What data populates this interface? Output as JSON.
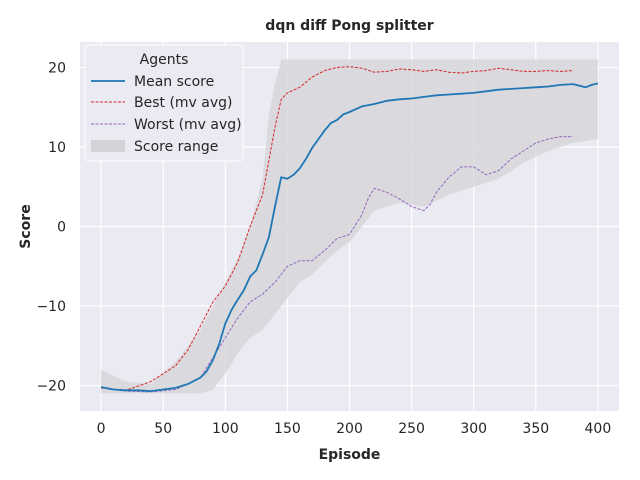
{
  "chart_data": {
    "type": "line",
    "title": "dqn diff Pong splitter",
    "xlabel": "Episode",
    "ylabel": "Score",
    "xlim": [
      -17,
      417
    ],
    "ylim": [
      -23.2,
      23.2
    ],
    "xticks": [
      0,
      50,
      100,
      150,
      200,
      250,
      300,
      350,
      400
    ],
    "yticks": [
      -20,
      -10,
      0,
      10,
      20
    ],
    "grid": true,
    "legend": {
      "title": "Agents",
      "placement": "top-left",
      "entries": [
        "Mean score",
        "Best (mv avg)",
        "Worst (mv avg)",
        "Score range"
      ]
    },
    "colors": {
      "background": "#EAEAF2",
      "grid": "#FFFFFF",
      "mean": "#1F77B4",
      "best": "#D62728",
      "worst": "#9467BD",
      "range": "#D3D3D7"
    },
    "series": [
      {
        "name": "Mean score",
        "style": "solid",
        "points": [
          [
            0,
            -20.2
          ],
          [
            10,
            -20.5
          ],
          [
            20,
            -20.6
          ],
          [
            30,
            -20.6
          ],
          [
            40,
            -20.7
          ],
          [
            50,
            -20.5
          ],
          [
            60,
            -20.3
          ],
          [
            70,
            -19.8
          ],
          [
            80,
            -19.0
          ],
          [
            85,
            -18.2
          ],
          [
            90,
            -16.8
          ],
          [
            95,
            -14.8
          ],
          [
            100,
            -12.2
          ],
          [
            105,
            -10.5
          ],
          [
            110,
            -9.2
          ],
          [
            115,
            -8.0
          ],
          [
            120,
            -6.3
          ],
          [
            125,
            -5.5
          ],
          [
            130,
            -3.5
          ],
          [
            135,
            -1.4
          ],
          [
            140,
            2.5
          ],
          [
            145,
            6.2
          ],
          [
            150,
            6.0
          ],
          [
            155,
            6.5
          ],
          [
            160,
            7.3
          ],
          [
            165,
            8.5
          ],
          [
            170,
            9.9
          ],
          [
            175,
            11.0
          ],
          [
            180,
            12.1
          ],
          [
            185,
            13.0
          ],
          [
            190,
            13.4
          ],
          [
            195,
            14.1
          ],
          [
            200,
            14.4
          ],
          [
            210,
            15.1
          ],
          [
            220,
            15.4
          ],
          [
            230,
            15.8
          ],
          [
            240,
            16.0
          ],
          [
            250,
            16.1
          ],
          [
            260,
            16.3
          ],
          [
            270,
            16.5
          ],
          [
            280,
            16.6
          ],
          [
            290,
            16.7
          ],
          [
            300,
            16.8
          ],
          [
            310,
            17.0
          ],
          [
            320,
            17.2
          ],
          [
            330,
            17.3
          ],
          [
            340,
            17.4
          ],
          [
            350,
            17.5
          ],
          [
            360,
            17.6
          ],
          [
            370,
            17.8
          ],
          [
            380,
            17.9
          ],
          [
            390,
            17.5
          ],
          [
            395,
            17.8
          ],
          [
            400,
            18.0
          ]
        ]
      },
      {
        "name": "Best (mv avg)",
        "style": "dashed",
        "points": [
          [
            0,
            -20.3
          ],
          [
            20,
            -20.6
          ],
          [
            40,
            -19.5
          ],
          [
            60,
            -17.5
          ],
          [
            70,
            -15.5
          ],
          [
            80,
            -12.5
          ],
          [
            90,
            -9.5
          ],
          [
            100,
            -7.5
          ],
          [
            110,
            -4.5
          ],
          [
            120,
            0.0
          ],
          [
            130,
            4.0
          ],
          [
            140,
            12.5
          ],
          [
            145,
            16.0
          ],
          [
            150,
            16.8
          ],
          [
            160,
            17.5
          ],
          [
            170,
            18.8
          ],
          [
            180,
            19.6
          ],
          [
            190,
            20.0
          ],
          [
            200,
            20.1
          ],
          [
            210,
            19.9
          ],
          [
            220,
            19.4
          ],
          [
            230,
            19.5
          ],
          [
            240,
            19.8
          ],
          [
            250,
            19.7
          ],
          [
            260,
            19.5
          ],
          [
            270,
            19.7
          ],
          [
            280,
            19.4
          ],
          [
            290,
            19.3
          ],
          [
            300,
            19.5
          ],
          [
            310,
            19.6
          ],
          [
            320,
            19.9
          ],
          [
            330,
            19.7
          ],
          [
            340,
            19.5
          ],
          [
            350,
            19.5
          ],
          [
            360,
            19.6
          ],
          [
            370,
            19.5
          ],
          [
            380,
            19.6
          ]
        ]
      },
      {
        "name": "Worst (mv avg)",
        "style": "dashed",
        "points": [
          [
            0,
            -20.3
          ],
          [
            20,
            -20.7
          ],
          [
            40,
            -20.8
          ],
          [
            60,
            -20.5
          ],
          [
            80,
            -19.0
          ],
          [
            100,
            -14.0
          ],
          [
            110,
            -11.5
          ],
          [
            120,
            -9.5
          ],
          [
            130,
            -8.5
          ],
          [
            140,
            -7.0
          ],
          [
            150,
            -5.0
          ],
          [
            160,
            -4.3
          ],
          [
            170,
            -4.3
          ],
          [
            180,
            -3.0
          ],
          [
            190,
            -1.5
          ],
          [
            200,
            -1.0
          ],
          [
            210,
            1.5
          ],
          [
            215,
            3.5
          ],
          [
            220,
            4.8
          ],
          [
            230,
            4.3
          ],
          [
            240,
            3.5
          ],
          [
            250,
            2.5
          ],
          [
            260,
            2.0
          ],
          [
            265,
            2.8
          ],
          [
            270,
            4.3
          ],
          [
            280,
            6.2
          ],
          [
            290,
            7.5
          ],
          [
            300,
            7.5
          ],
          [
            310,
            6.5
          ],
          [
            320,
            7.0
          ],
          [
            330,
            8.5
          ],
          [
            340,
            9.5
          ],
          [
            350,
            10.5
          ],
          [
            360,
            11.0
          ],
          [
            370,
            11.3
          ],
          [
            380,
            11.3
          ]
        ]
      }
    ],
    "range": {
      "name": "Score range",
      "upper": [
        [
          0,
          -18.0
        ],
        [
          20,
          -19.5
        ],
        [
          40,
          -19.8
        ],
        [
          60,
          -17.0
        ],
        [
          80,
          -13.0
        ],
        [
          90,
          -10.0
        ],
        [
          100,
          -7.0
        ],
        [
          110,
          -4.0
        ],
        [
          120,
          0.0
        ],
        [
          130,
          6.0
        ],
        [
          135,
          14.0
        ],
        [
          140,
          18.0
        ],
        [
          145,
          21.0
        ],
        [
          200,
          21.0
        ],
        [
          300,
          21.0
        ],
        [
          400,
          21.0
        ]
      ],
      "lower": [
        [
          0,
          -21.0
        ],
        [
          50,
          -21.0
        ],
        [
          80,
          -21.0
        ],
        [
          90,
          -20.5
        ],
        [
          100,
          -18.5
        ],
        [
          110,
          -16.0
        ],
        [
          120,
          -14.0
        ],
        [
          130,
          -13.0
        ],
        [
          140,
          -11.0
        ],
        [
          150,
          -9.0
        ],
        [
          160,
          -7.0
        ],
        [
          170,
          -6.0
        ],
        [
          180,
          -4.5
        ],
        [
          190,
          -3.0
        ],
        [
          200,
          -2.0
        ],
        [
          210,
          0.0
        ],
        [
          220,
          2.0
        ],
        [
          240,
          3.0
        ],
        [
          260,
          2.5
        ],
        [
          280,
          4.0
        ],
        [
          300,
          5.0
        ],
        [
          320,
          6.0
        ],
        [
          340,
          8.0
        ],
        [
          360,
          9.5
        ],
        [
          380,
          10.5
        ],
        [
          400,
          11.0
        ]
      ]
    }
  }
}
